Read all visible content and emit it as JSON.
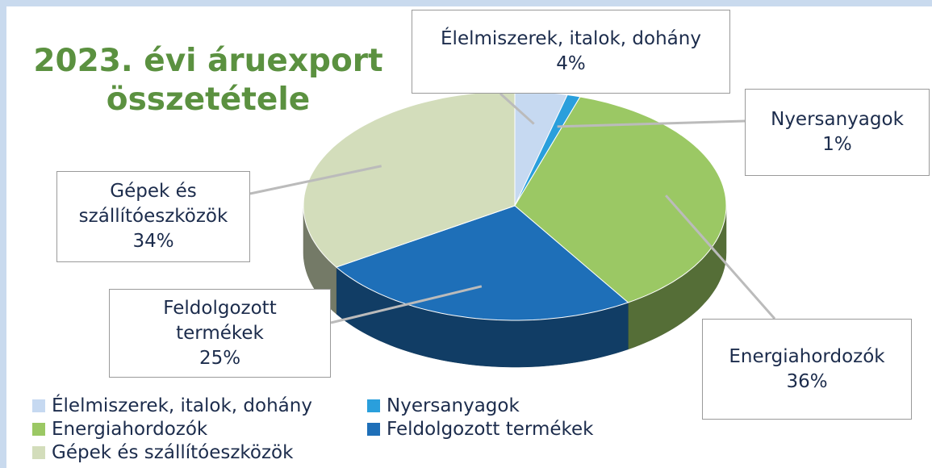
{
  "chart_data": {
    "type": "pie",
    "title": "2023. évi áruexport összetétele",
    "categories": [
      "Élelmiszerek, italok, dohány",
      "Nyersanyagok",
      "Energiahordozók",
      "Feldolgozott termékek",
      "Gépek és szállítóeszközök"
    ],
    "values": [
      4,
      1,
      36,
      25,
      34
    ],
    "value_labels": [
      "4%",
      "1%",
      "36%",
      "25%",
      "34%"
    ],
    "colors": [
      "#c6d9f1",
      "#2a9fdc",
      "#9bc864",
      "#1e6fb8",
      "#d3ddbb"
    ],
    "legend": "bottom"
  }
}
